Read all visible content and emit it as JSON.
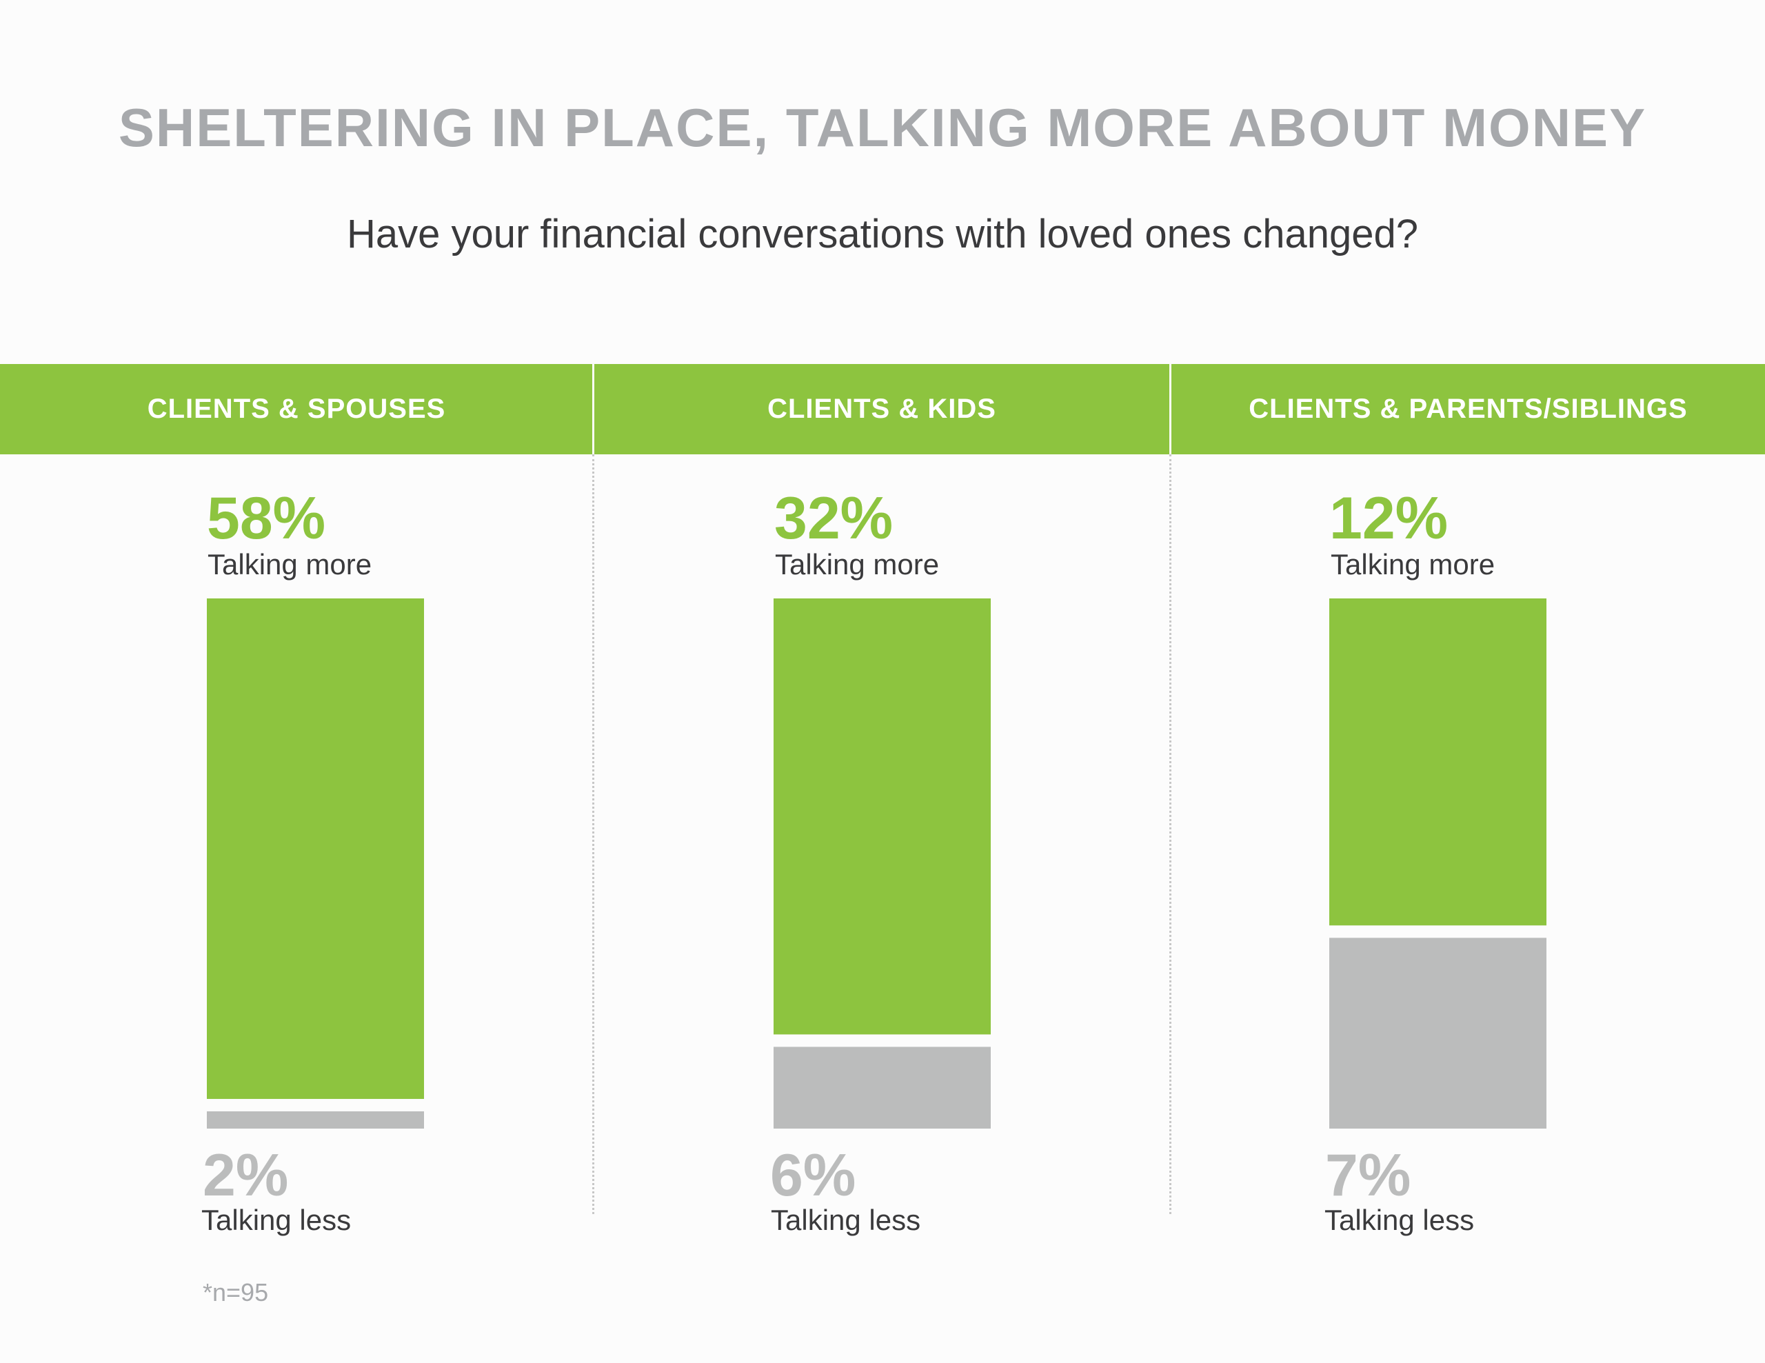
{
  "chart_data": {
    "type": "bar",
    "title": "SHELTERING IN PLACE, TALKING MORE ABOUT MONEY",
    "subtitle": "Have your financial conversations with loved ones changed?",
    "categories": [
      "CLIENTS & SPOUSES",
      "CLIENTS & KIDS",
      "CLIENTS & PARENTS/SIBLINGS"
    ],
    "series": [
      {
        "name": "Talking more",
        "values": [
          58,
          32,
          12
        ],
        "labels": [
          "58%",
          "32%",
          "12%"
        ],
        "color": "#8dc43f"
      },
      {
        "name": "Talking less",
        "values": [
          2,
          6,
          7
        ],
        "labels": [
          "2%",
          "6%",
          "7%"
        ],
        "color": "#bbbcbc"
      }
    ],
    "stacked": true,
    "note": "*n=95"
  }
}
